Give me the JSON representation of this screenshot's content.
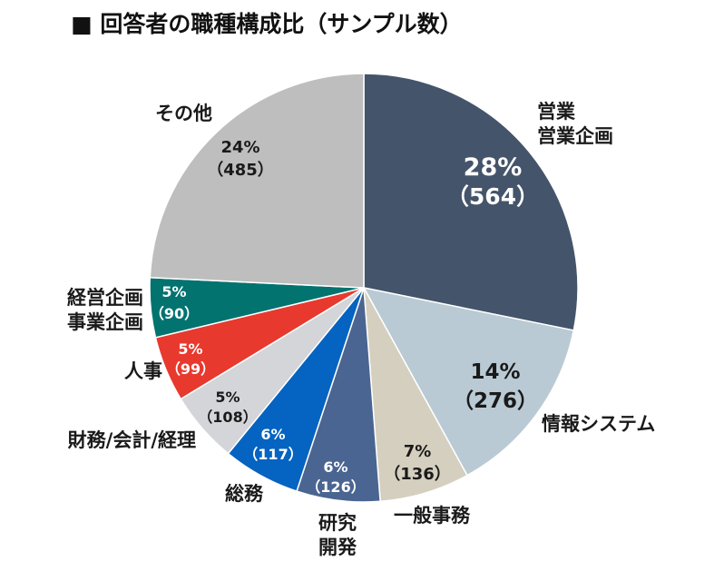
{
  "chart_data": {
    "type": "pie",
    "title": "■ 回答者の職種構成比（サンプル数）",
    "slices": [
      {
        "name": "営業 営業企画",
        "label_lines": [
          "営業",
          "営業企画"
        ],
        "percent_label": "28%",
        "count_label": "（564）",
        "value": 564,
        "color": "#44546a",
        "text_color": "#ffffff"
      },
      {
        "name": "情報システム",
        "label_lines": [
          "情報システム"
        ],
        "percent_label": "14%",
        "count_label": "（276）",
        "value": 276,
        "color": "#b9cad4",
        "text_color": "#1a1a1a"
      },
      {
        "name": "一般事務",
        "label_lines": [
          "一般事務"
        ],
        "percent_label": "7%",
        "count_label": "（136）",
        "value": 136,
        "color": "#d5cfbf",
        "text_color": "#1a1a1a"
      },
      {
        "name": "研究 開発",
        "label_lines": [
          "研究",
          "開発"
        ],
        "percent_label": "6%",
        "count_label": "（126）",
        "value": 126,
        "color": "#4a6591",
        "text_color": "#ffffff"
      },
      {
        "name": "総務",
        "label_lines": [
          "総務"
        ],
        "percent_label": "6%",
        "count_label": "（117）",
        "value": 117,
        "color": "#0563c1",
        "text_color": "#ffffff"
      },
      {
        "name": "財務/会計/経理",
        "label_lines": [
          "財務/会計/経理"
        ],
        "percent_label": "5%",
        "count_label": "（108）",
        "value": 108,
        "color": "#d3d5d8",
        "text_color": "#1a1a1a"
      },
      {
        "name": "人事",
        "label_lines": [
          "人事"
        ],
        "percent_label": "5%",
        "count_label": "（99）",
        "value": 99,
        "color": "#e8392e",
        "text_color": "#ffffff"
      },
      {
        "name": "経営企画 事業企画",
        "label_lines": [
          "経営企画",
          "事業企画"
        ],
        "percent_label": "5%",
        "count_label": "（90）",
        "value": 90,
        "color": "#037370",
        "text_color": "#ffffff"
      },
      {
        "name": "その他",
        "label_lines": [
          "その他"
        ],
        "percent_label": "24%",
        "count_label": "（485）",
        "value": 485,
        "color": "#bebebe",
        "text_color": "#1a1a1a"
      }
    ]
  }
}
